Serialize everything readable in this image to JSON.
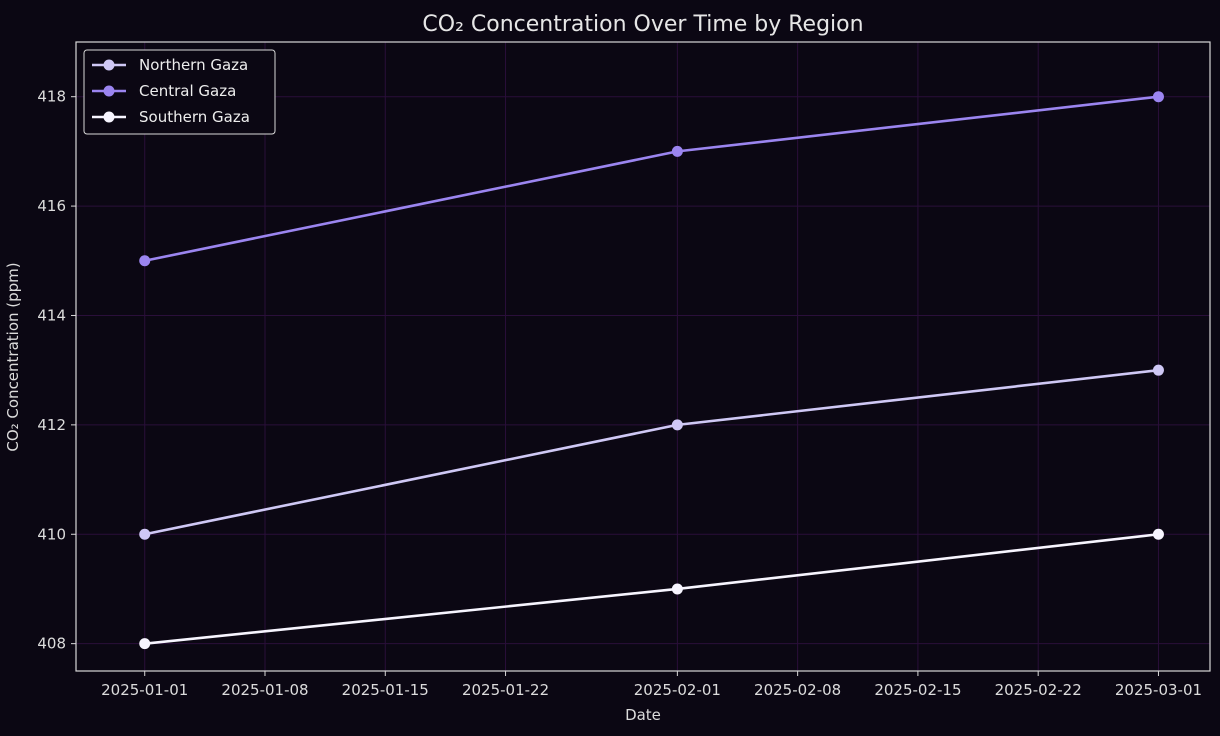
{
  "chart_data": {
    "type": "line",
    "title": "CO₂ Concentration Over Time by Region",
    "xlabel": "Date",
    "ylabel": "CO₂ Concentration (ppm)",
    "x_ticks": [
      "2025-01-01",
      "2025-01-08",
      "2025-01-15",
      "2025-01-22",
      "2025-02-01",
      "2025-02-08",
      "2025-02-15",
      "2025-02-22",
      "2025-03-01"
    ],
    "y_ticks": [
      408,
      410,
      412,
      414,
      416,
      418
    ],
    "xlim": [
      "2024-12-28",
      "2025-03-04"
    ],
    "ylim": [
      407.5,
      419.0
    ],
    "grid": true,
    "legend_position": "top-left",
    "series": [
      {
        "name": "Northern Gaza",
        "color": "#cfc8f5",
        "x": [
          "2025-01-01",
          "2025-02-01",
          "2025-03-01"
        ],
        "values": [
          410,
          412,
          413
        ]
      },
      {
        "name": "Central Gaza",
        "color": "#9b85f0",
        "x": [
          "2025-01-01",
          "2025-02-01",
          "2025-03-01"
        ],
        "values": [
          415,
          417,
          418
        ]
      },
      {
        "name": "Southern Gaza",
        "color": "#f7f5ff",
        "x": [
          "2025-01-01",
          "2025-02-01",
          "2025-03-01"
        ],
        "values": [
          408,
          409,
          410
        ]
      }
    ],
    "colors": {
      "background": "#0b0713",
      "axes_edge": "#d8d8d8",
      "grid": "#2a0f3a",
      "text": "#dcdcdc"
    }
  }
}
